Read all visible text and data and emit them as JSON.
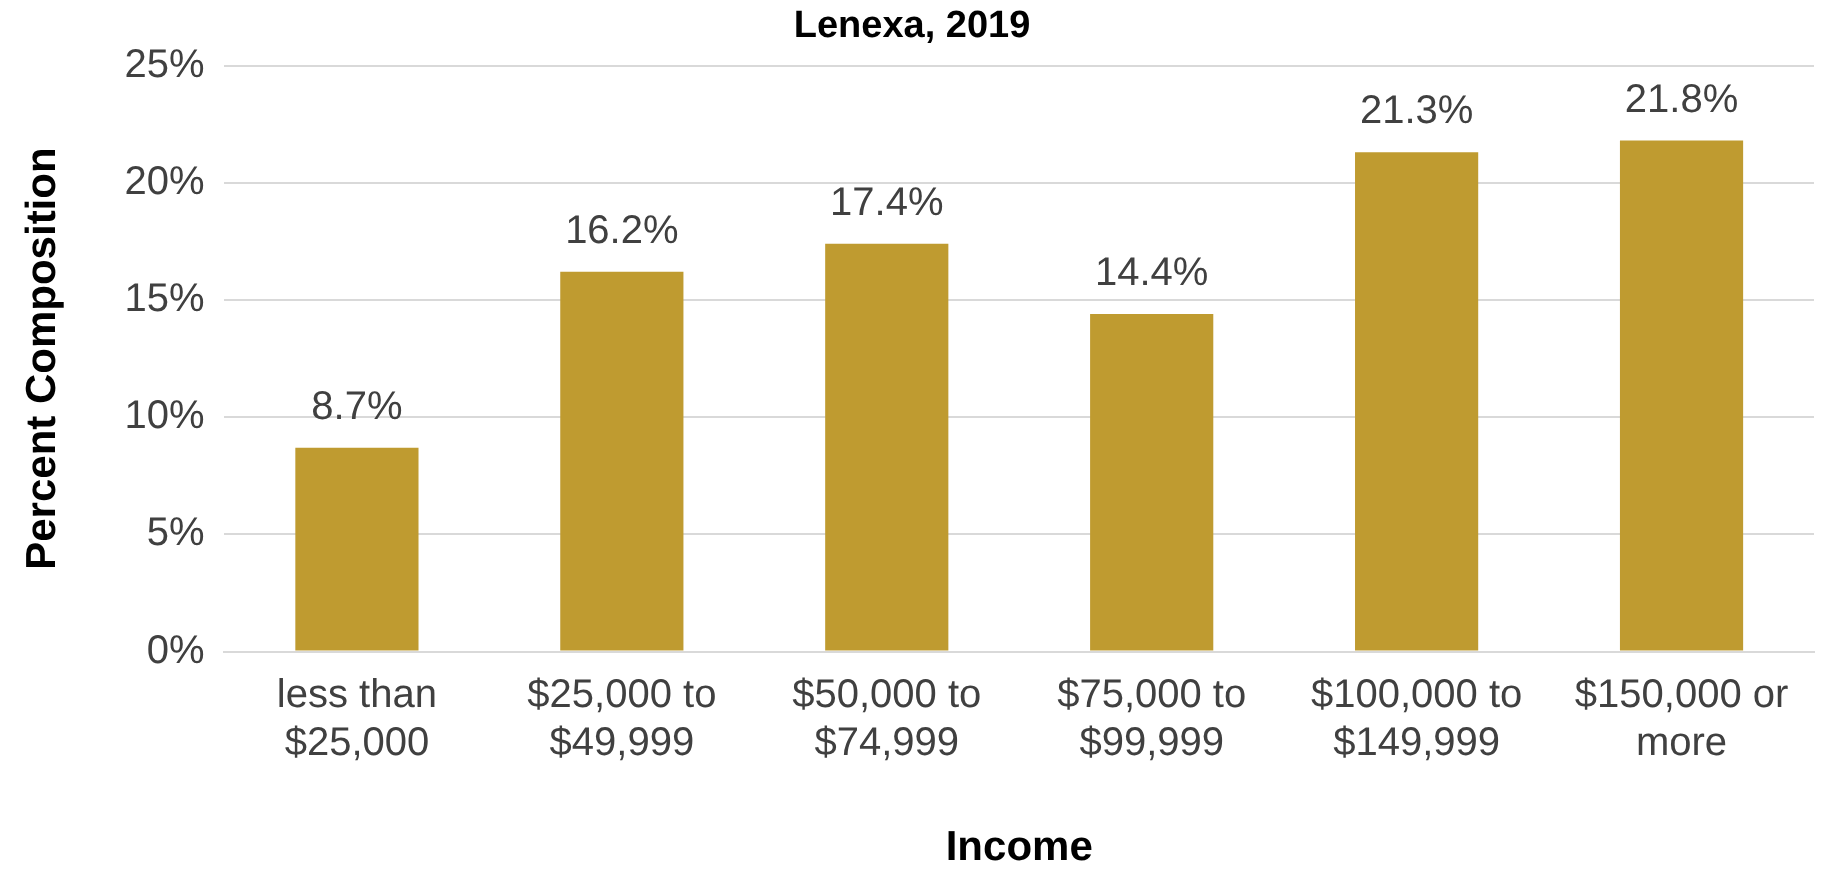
{
  "chart_data": {
    "type": "bar",
    "title": "Lenexa, 2019",
    "xlabel": "Income",
    "ylabel": "Percent Composition",
    "categories": [
      "less than $25,000",
      "$25,000 to $49,999",
      "$50,000 to $74,999",
      "$75,000 to $99,999",
      "$100,000 to $149,999",
      "$150,000 or more"
    ],
    "values": [
      8.7,
      16.2,
      17.4,
      14.4,
      21.3,
      21.8
    ],
    "value_labels": [
      "8.7%",
      "16.2%",
      "17.4%",
      "14.4%",
      "21.3%",
      "21.8%"
    ],
    "color": "#bf9b30",
    "ylim": [
      0,
      25
    ],
    "yticks": [
      {
        "value": 0,
        "label": "0%"
      },
      {
        "value": 5,
        "label": "5%"
      },
      {
        "value": 10,
        "label": "10%"
      },
      {
        "value": 15,
        "label": "15%"
      },
      {
        "value": 20,
        "label": "20%"
      },
      {
        "value": 25,
        "label": "25%"
      }
    ],
    "grid": "y",
    "legend": false
  }
}
